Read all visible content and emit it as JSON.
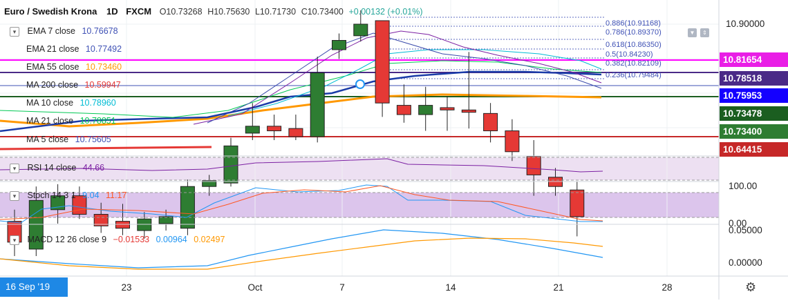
{
  "header": {
    "symbol": "Euro / Swedish Krona",
    "interval": "1D",
    "exchange": "FXCM",
    "open": "O10.73268",
    "high": "H10.75630",
    "low": "L10.71730",
    "close": "C10.73400",
    "change": "+0.00132 (+0.01%)"
  },
  "indicators": [
    {
      "label": "EMA 7 close",
      "value": "10.76678",
      "color": "#3f51b5"
    },
    {
      "label": "EMA 21 close",
      "value": "10.77492",
      "color": "#3f51b5"
    },
    {
      "label": "EMA 55 close",
      "value": "10.73460",
      "color": "#ff9800"
    },
    {
      "label": "MA 200 close",
      "value": "10.59947",
      "color": "#e53935"
    },
    {
      "label": "MA 10 close",
      "value": "10.78960",
      "color": "#00bcd4"
    },
    {
      "label": "MA 21 close",
      "value": "10.78851",
      "color": "#00e676"
    },
    {
      "label": "MA 5 close",
      "value": "10.75605",
      "color": "#3f51b5"
    }
  ],
  "rsi": {
    "label": "RSI 14 close",
    "value": "44.66",
    "color": "#7b1fa2"
  },
  "stoch": {
    "label": "Stoch 14 3 1",
    "k": "9.04",
    "d": "11.17",
    "k_color": "#2196f3",
    "d_color": "#ff5722"
  },
  "macd": {
    "label": "MACD 12 26 close 9",
    "hist": "−0.01533",
    "macd": "0.00964",
    "signal": "0.02497",
    "hist_color": "#e53935",
    "macd_color": "#2196f3",
    "signal_color": "#ff9800"
  },
  "price_tags": [
    {
      "text": "10.81654",
      "bg": "#e91ee6"
    },
    {
      "text": "10.78518",
      "bg": "#4a2a87"
    },
    {
      "text": "10.75953",
      "bg": "#1400ff"
    },
    {
      "text": "10.73478",
      "bg": "#1b5e20"
    },
    {
      "text": "10.73400",
      "bg": "#2e7d32"
    },
    {
      "text": "10.64415",
      "bg": "#c62828"
    }
  ],
  "price_axis": [
    "10.90000"
  ],
  "stoch_axis": [
    "100.00",
    "0.00"
  ],
  "macd_axis": [
    "0.05000",
    "0.00000"
  ],
  "dates": [
    "23",
    "Oct",
    "7",
    "14",
    "21",
    "28"
  ],
  "date_tag": "16 Sep '19",
  "fib_levels": [
    {
      "label": "0.886(10.91168)"
    },
    {
      "label": "0.786(10.89370)"
    },
    {
      "label": "0.618(10.86350)"
    },
    {
      "label": "0.5(10.84230)"
    },
    {
      "label": "0.382(10.82109)"
    },
    {
      "label": "0.236(10.79484)"
    }
  ],
  "colors": {
    "bull": "#2e7d32",
    "bear": "#e53935",
    "pane_fill": "#e1bee7"
  },
  "icons": {
    "settings": "gear-icon",
    "collapse": "chevron-down-icon"
  },
  "chart_data": {
    "type": "candlestick",
    "title": "Euro / Swedish Krona",
    "candles": [
      {
        "o": 10.73,
        "h": 10.74,
        "l": 10.7,
        "c": 10.712
      },
      {
        "o": 10.706,
        "h": 10.76,
        "l": 10.7,
        "c": 10.748
      },
      {
        "o": 10.74,
        "h": 10.762,
        "l": 10.728,
        "c": 10.752
      },
      {
        "o": 10.752,
        "h": 10.76,
        "l": 10.732,
        "c": 10.736
      },
      {
        "o": 10.736,
        "h": 10.746,
        "l": 10.72,
        "c": 10.726
      },
      {
        "o": 10.73,
        "h": 10.745,
        "l": 10.718,
        "c": 10.724
      },
      {
        "o": 10.722,
        "h": 10.738,
        "l": 10.715,
        "c": 10.732
      },
      {
        "o": 10.728,
        "h": 10.74,
        "l": 10.722,
        "c": 10.734
      },
      {
        "o": 10.724,
        "h": 10.766,
        "l": 10.718,
        "c": 10.76
      },
      {
        "o": 10.76,
        "h": 10.77,
        "l": 10.752,
        "c": 10.765
      },
      {
        "o": 10.763,
        "h": 10.802,
        "l": 10.76,
        "c": 10.795
      },
      {
        "o": 10.806,
        "h": 10.832,
        "l": 10.8,
        "c": 10.812
      },
      {
        "o": 10.812,
        "h": 10.822,
        "l": 10.8,
        "c": 10.808
      },
      {
        "o": 10.81,
        "h": 10.822,
        "l": 10.8,
        "c": 10.803
      },
      {
        "o": 10.803,
        "h": 10.872,
        "l": 10.798,
        "c": 10.858
      },
      {
        "o": 10.878,
        "h": 10.892,
        "l": 10.87,
        "c": 10.886
      },
      {
        "o": 10.89,
        "h": 10.912,
        "l": 10.885,
        "c": 10.9
      },
      {
        "o": 10.903,
        "h": 10.903,
        "l": 10.82,
        "c": 10.832
      },
      {
        "o": 10.83,
        "h": 10.848,
        "l": 10.815,
        "c": 10.822
      },
      {
        "o": 10.822,
        "h": 10.846,
        "l": 10.808,
        "c": 10.83
      },
      {
        "o": 10.828,
        "h": 10.838,
        "l": 10.808,
        "c": 10.826
      },
      {
        "o": 10.826,
        "h": 10.876,
        "l": 10.81,
        "c": 10.824
      },
      {
        "o": 10.823,
        "h": 10.832,
        "l": 10.798,
        "c": 10.808
      },
      {
        "o": 10.808,
        "h": 10.818,
        "l": 10.782,
        "c": 10.79
      },
      {
        "o": 10.786,
        "h": 10.8,
        "l": 10.752,
        "c": 10.77
      },
      {
        "o": 10.768,
        "h": 10.776,
        "l": 10.752,
        "c": 10.76
      },
      {
        "o": 10.757,
        "h": 10.764,
        "l": 10.717,
        "c": 10.734
      }
    ]
  }
}
